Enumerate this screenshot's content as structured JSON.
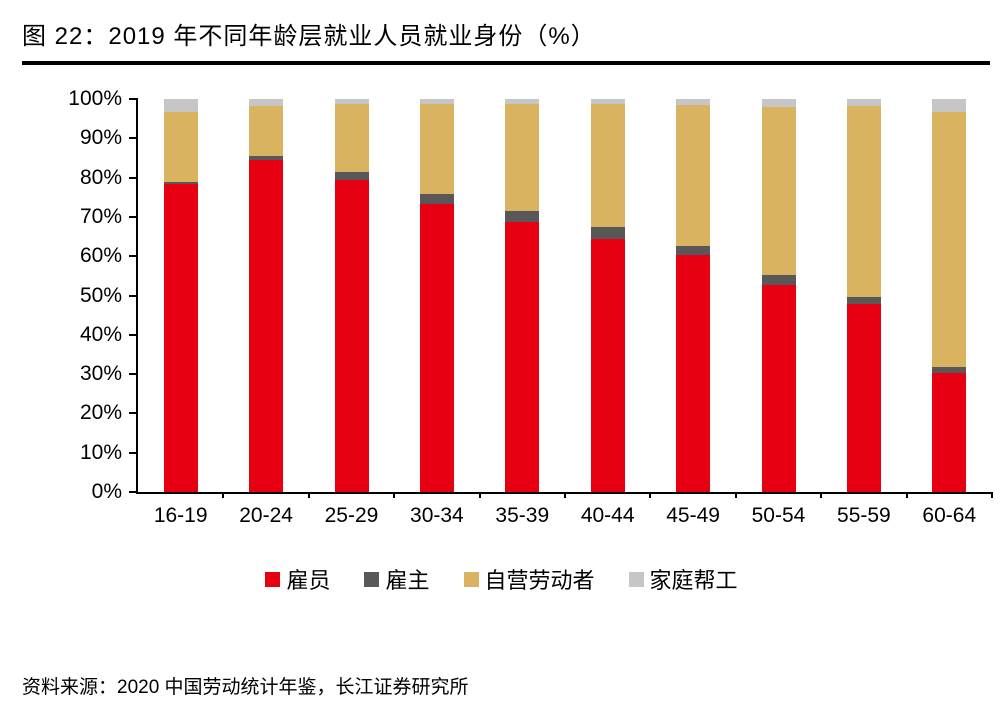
{
  "header": {
    "title": "图 22：2019 年不同年龄层就业人员就业身份（%）"
  },
  "footer": {
    "source": "资料来源：2020 中国劳动统计年鉴，长江证券研究所"
  },
  "colors": {
    "employee_red": "#e60012",
    "employer_dark_gray": "#595757",
    "own_account_tan": "#d9b360",
    "family_helper_light_gray": "#c6c6c6",
    "axis_black": "#000000"
  },
  "chart_data": {
    "type": "bar",
    "stacked": true,
    "title": "2019 年不同年龄层就业人员就业身份（%）",
    "xlabel": "",
    "ylabel": "",
    "ylim": [
      0,
      100
    ],
    "grid": false,
    "legend_position": "bottom",
    "yticks": [
      "0%",
      "10%",
      "20%",
      "30%",
      "40%",
      "50%",
      "60%",
      "70%",
      "80%",
      "90%",
      "100%"
    ],
    "categories": [
      "16-19",
      "20-24",
      "25-29",
      "30-34",
      "35-39",
      "40-44",
      "45-49",
      "50-54",
      "55-59",
      "60-64"
    ],
    "series": [
      {
        "name": "雇员",
        "color": "#e60012",
        "values": [
          78.4,
          84.5,
          79.4,
          73.2,
          68.6,
          64.4,
          60.3,
          52.8,
          47.8,
          30.4
        ]
      },
      {
        "name": "雇主",
        "color": "#595757",
        "values": [
          0.6,
          1.0,
          2.1,
          2.6,
          3.0,
          3.0,
          2.3,
          2.4,
          1.9,
          1.4
        ]
      },
      {
        "name": "自营劳动者",
        "color": "#d9b360",
        "values": [
          17.8,
          12.8,
          17.2,
          22.9,
          27.2,
          31.4,
          35.9,
          42.8,
          48.4,
          64.9
        ]
      },
      {
        "name": "家庭帮工",
        "color": "#c6c6c6",
        "values": [
          3.2,
          1.7,
          1.3,
          1.3,
          1.2,
          1.2,
          1.5,
          2.0,
          1.9,
          3.3
        ]
      }
    ]
  }
}
